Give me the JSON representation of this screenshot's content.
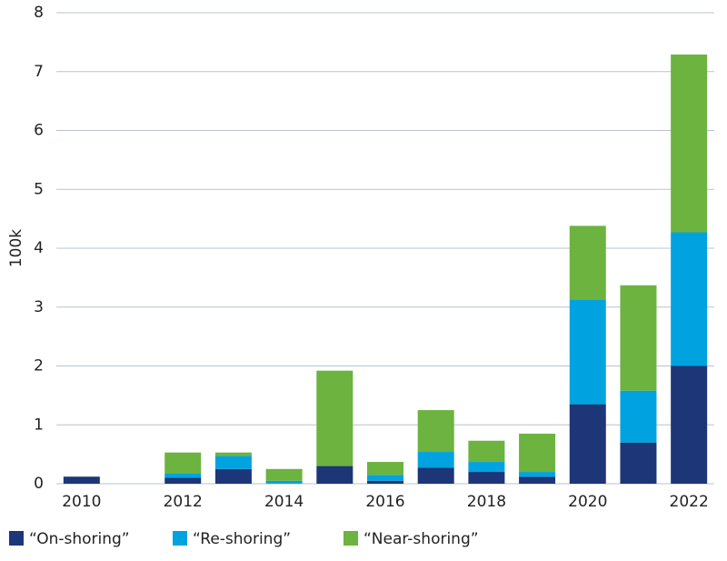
{
  "chart_data": {
    "type": "stacked_bar",
    "y_label": "100k",
    "categories": [
      "2010",
      null,
      "2012",
      null,
      "2014",
      null,
      "2016",
      null,
      "2018",
      null,
      "2020",
      null,
      "2022"
    ],
    "series": [
      {
        "name": "“On-shoring”",
        "color": "#1c3677",
        "values": [
          0.12,
          0,
          0.1,
          0.25,
          0,
          0.3,
          0.05,
          0.27,
          0.2,
          0.12,
          1.35,
          0.7,
          2.0
        ]
      },
      {
        "name": "“Re-shoring”",
        "color": "#00a3e0",
        "values": [
          0,
          0,
          0.07,
          0.22,
          0.05,
          0,
          0.1,
          0.27,
          0.17,
          0.08,
          1.78,
          0.88,
          2.27
        ]
      },
      {
        "name": "“Near-shoring”",
        "color": "#6cb33f",
        "values": [
          0,
          0,
          0.36,
          0.06,
          0.2,
          1.62,
          0.22,
          0.71,
          0.36,
          0.65,
          1.25,
          1.79,
          3.02
        ]
      }
    ],
    "ylim": [
      0,
      8
    ],
    "yticks": [
      0,
      1,
      2,
      3,
      4,
      5,
      6,
      7,
      8
    ],
    "grid": true
  }
}
